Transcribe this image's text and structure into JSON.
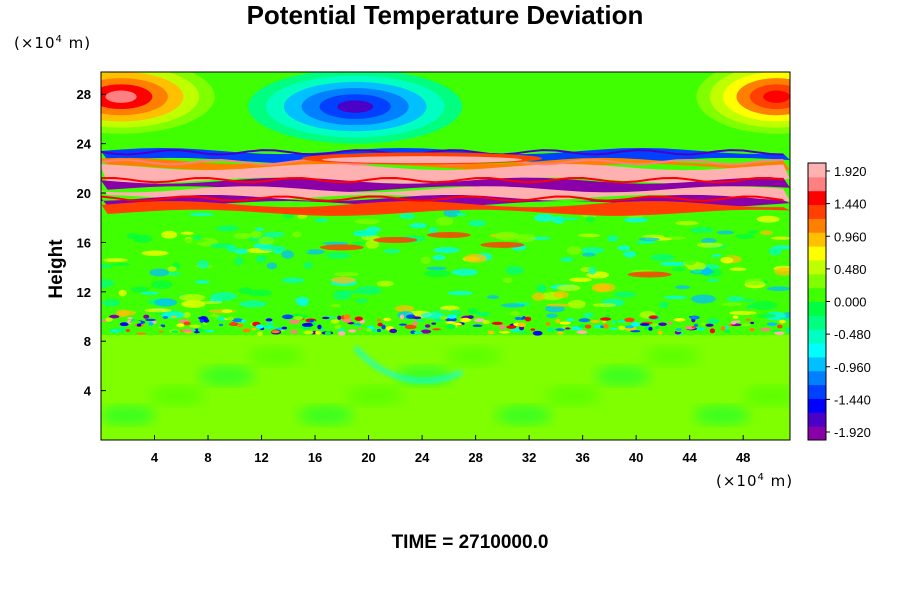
{
  "chart_data": {
    "type": "heatmap",
    "title": "Potential Temperature Deviation",
    "ylabel": "Height",
    "x_unit": {
      "prefix": "(×10",
      "exp": "4",
      "suffix": " m)"
    },
    "y_unit": {
      "prefix": "(×10",
      "exp": "4",
      "suffix": " m)"
    },
    "footer": "TIME = 2710000.0",
    "xlim": [
      0,
      51.5
    ],
    "ylim": [
      0,
      29.8
    ],
    "x_ticks": [
      4,
      8,
      12,
      16,
      20,
      24,
      28,
      32,
      36,
      40,
      44,
      48
    ],
    "y_ticks": [
      4,
      8,
      12,
      16,
      20,
      24,
      28
    ],
    "colorbar": {
      "min": -1.92,
      "max": 1.92,
      "tick_labels": [
        "1.920",
        "1.440",
        "0.960",
        "0.480",
        "0.000",
        "-0.480",
        "-0.960",
        "-1.440",
        "-1.920"
      ],
      "colors": [
        "#8a00a8",
        "#4b00c8",
        "#0000ff",
        "#0040ff",
        "#0080ff",
        "#00c0ff",
        "#00ffff",
        "#00ffc0",
        "#00ff80",
        "#00ff40",
        "#40ff00",
        "#80ff00",
        "#c0ff00",
        "#ffff00",
        "#ffc000",
        "#ff8000",
        "#ff4000",
        "#ff0000",
        "#ff8080",
        "#ffb0b0"
      ]
    },
    "features": [
      {
        "name": "warm core upper-left",
        "x": 1.5,
        "y": 27.8,
        "rx": 7,
        "ry": 3,
        "value": 1.7
      },
      {
        "name": "warm core upper-right",
        "x": 50.5,
        "y": 27.8,
        "rx": 6,
        "ry": 3,
        "value": 1.5
      },
      {
        "name": "cold core top-center",
        "x": 19,
        "y": 27,
        "rx": 8,
        "ry": 3,
        "value": -1.6
      },
      {
        "name": "inversion band high",
        "y": 21.5,
        "value": 2.0
      },
      {
        "name": "cold band",
        "y": 20.4,
        "value": -2.0
      },
      {
        "name": "inversion band low",
        "y": 19.8,
        "value": 2.0
      },
      {
        "name": "noisy band",
        "y": 9.2,
        "value": 0.0
      }
    ]
  }
}
